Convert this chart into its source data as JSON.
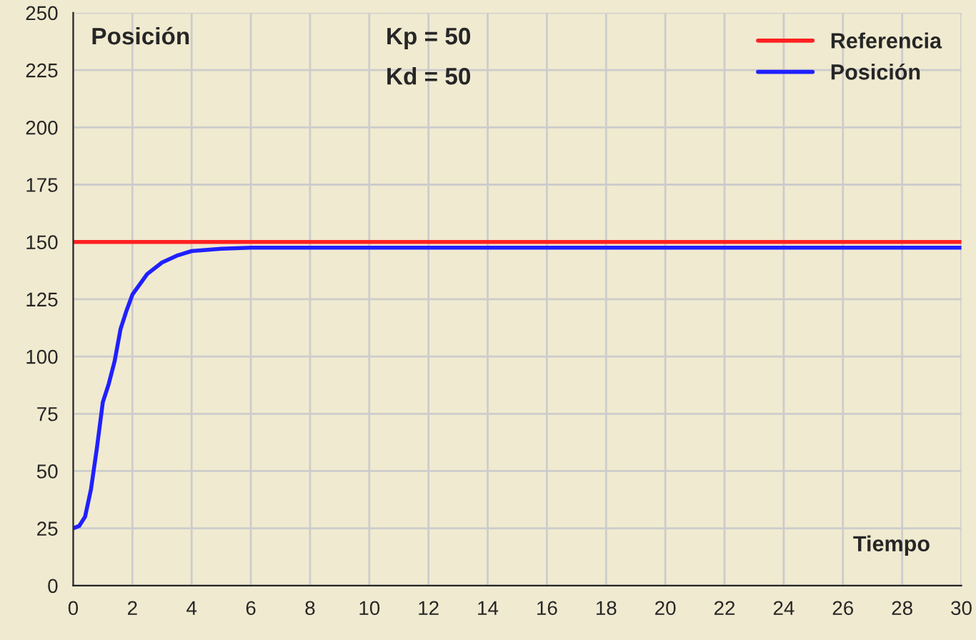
{
  "chart_data": {
    "type": "line",
    "title": "Posición",
    "xlabel": "Tiempo",
    "annotations": [
      "Kp = 50",
      "Kd = 50"
    ],
    "x": [
      0,
      0.2,
      0.4,
      0.6,
      0.8,
      1.0,
      1.2,
      1.4,
      1.6,
      1.8,
      2.0,
      2.5,
      3.0,
      3.5,
      4.0,
      5.0,
      6.0,
      30
    ],
    "series": [
      {
        "name": "Referencia",
        "color": "#ff2020",
        "values": [
          150,
          150,
          150,
          150,
          150,
          150,
          150,
          150,
          150,
          150,
          150,
          150,
          150,
          150,
          150,
          150,
          150,
          150
        ]
      },
      {
        "name": "Posición",
        "color": "#2020ff",
        "values": [
          25,
          26,
          30,
          42,
          60,
          80,
          88,
          98,
          112,
          120,
          127,
          136,
          141,
          144,
          146,
          147,
          147.5,
          147.5
        ]
      }
    ],
    "xlim": [
      0,
      30
    ],
    "xticks": [
      0,
      2,
      4,
      6,
      8,
      10,
      12,
      14,
      16,
      18,
      20,
      22,
      24,
      26,
      28,
      30
    ],
    "ylim": [
      0,
      250
    ],
    "yticks": [
      0,
      25,
      50,
      75,
      100,
      125,
      150,
      175,
      200,
      225,
      250
    ],
    "grid": true,
    "legend": "top right",
    "line_style": "solid",
    "marker": "none"
  }
}
